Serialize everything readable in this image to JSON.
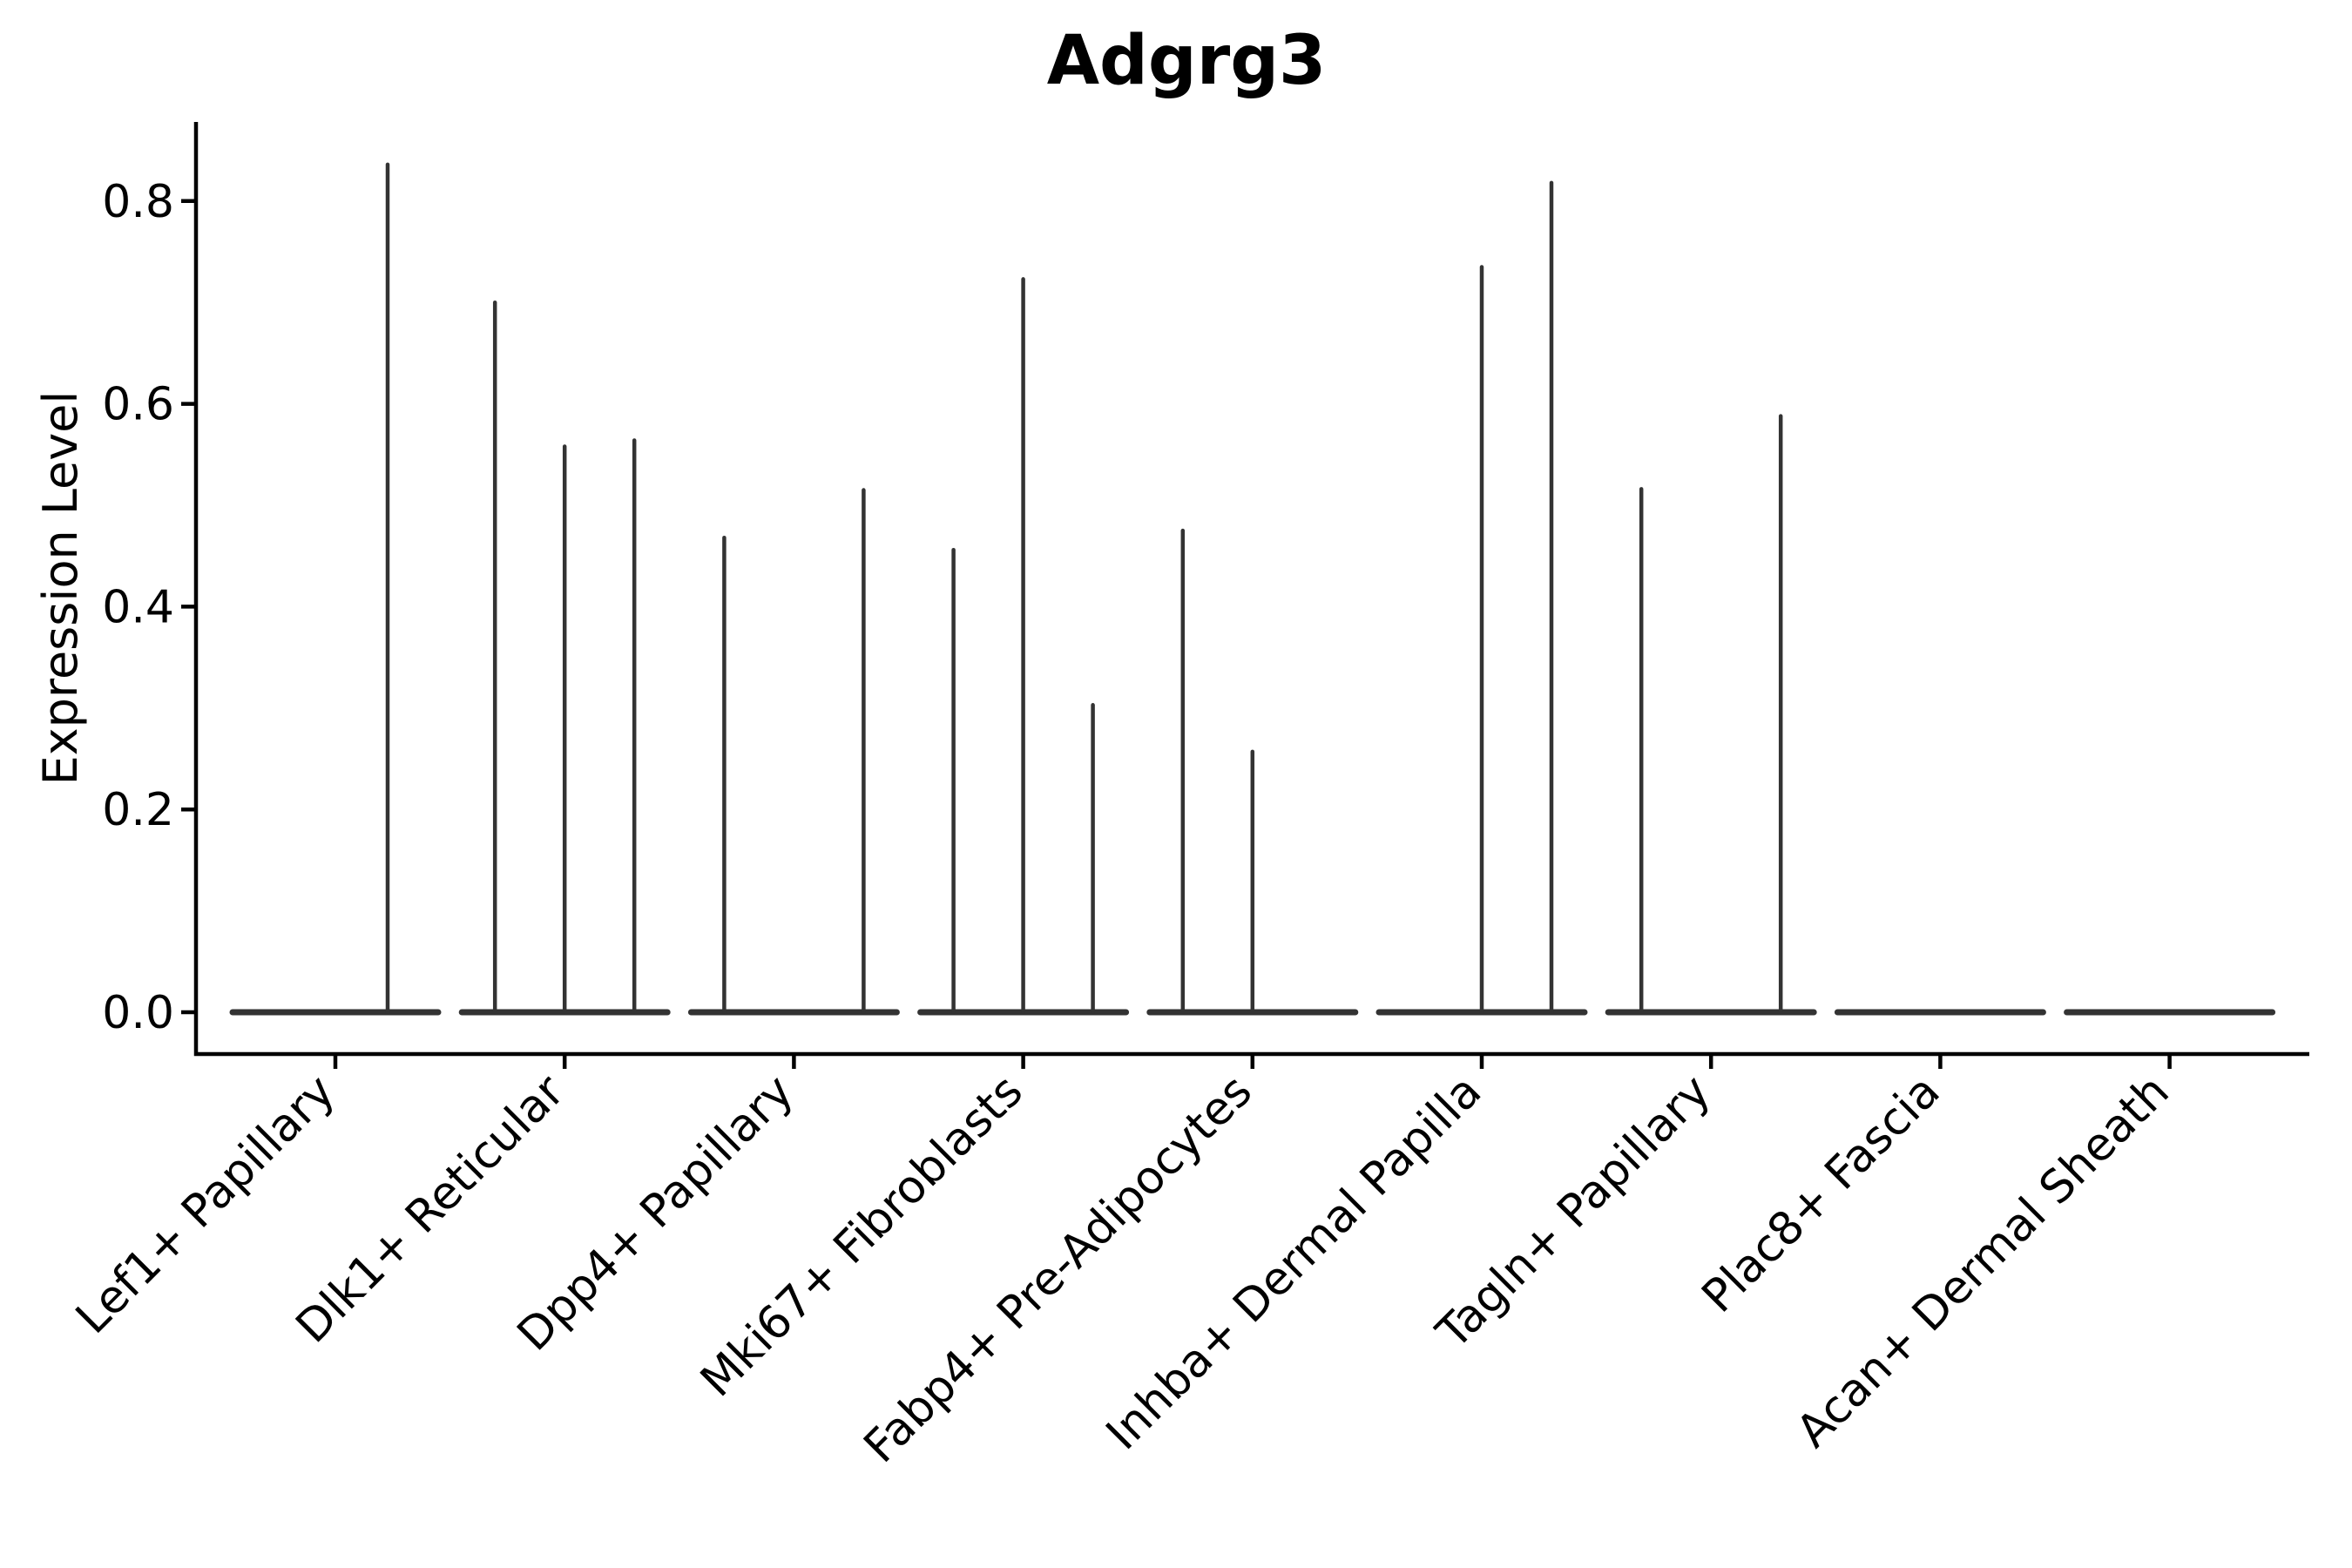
{
  "chart_data": {
    "type": "violin",
    "title": "Adgrg3",
    "xlabel": "",
    "ylabel": "Expression Level",
    "ylim": [
      0,
      0.878
    ],
    "yticks": [
      0.0,
      0.2,
      0.4,
      0.6,
      0.8
    ],
    "ytick_labels": [
      "0.0",
      "0.2",
      "0.4",
      "0.6",
      "0.8"
    ],
    "grid": false,
    "legend": "none",
    "x_tick_label_rotation_deg": 45,
    "colors": {
      "violin": "#333333",
      "axis": "#000000",
      "text": "#000000",
      "background": "#ffffff"
    },
    "description": "Violin plot of Adgrg3 expression; nearly all cells at 0 giving flat violins with thin density spikes up to the max expressing cell per sub-violin.",
    "categories": [
      "Lef1+ Papillary",
      "Dlk1+ Reticular",
      "Dpp4+ Papillary",
      "Mki67+ Fibroblasts",
      "Fabp4+ Pre-Adipocytes",
      "Inhba+ Dermal Papilla",
      "Tagln+ Papillary",
      "Plac8+ Fascia",
      "Acan+ Dermal Sheath"
    ],
    "violins": [
      {
        "category": "Lef1+ Papillary",
        "slots": 2,
        "spikes": [
          {
            "slot": 1,
            "max": 0.836
          }
        ]
      },
      {
        "category": "Dlk1+ Reticular",
        "slots": 3,
        "spikes": [
          {
            "slot": 0,
            "max": 0.7
          },
          {
            "slot": 1,
            "max": 0.558
          },
          {
            "slot": 2,
            "max": 0.564
          }
        ]
      },
      {
        "category": "Dpp4+ Papillary",
        "slots": 3,
        "spikes": [
          {
            "slot": 0,
            "max": 0.468
          },
          {
            "slot": 2,
            "max": 0.515
          }
        ]
      },
      {
        "category": "Mki67+ Fibroblasts",
        "slots": 3,
        "spikes": [
          {
            "slot": 0,
            "max": 0.456
          },
          {
            "slot": 1,
            "max": 0.723
          },
          {
            "slot": 2,
            "max": 0.303
          }
        ]
      },
      {
        "category": "Fabp4+ Pre-Adipocytes",
        "slots": 3,
        "spikes": [
          {
            "slot": 0,
            "max": 0.475
          },
          {
            "slot": 1,
            "max": 0.257
          }
        ]
      },
      {
        "category": "Inhba+ Dermal Papilla",
        "slots": 3,
        "spikes": [
          {
            "slot": 1,
            "max": 0.735
          },
          {
            "slot": 2,
            "max": 0.818
          }
        ]
      },
      {
        "category": "Tagln+ Papillary",
        "slots": 3,
        "spikes": [
          {
            "slot": 0,
            "max": 0.516
          },
          {
            "slot": 2,
            "max": 0.588
          }
        ]
      },
      {
        "category": "Plac8+ Fascia",
        "slots": 3,
        "spikes": []
      },
      {
        "category": "Acan+ Dermal Sheath",
        "slots": 3,
        "spikes": []
      }
    ]
  }
}
